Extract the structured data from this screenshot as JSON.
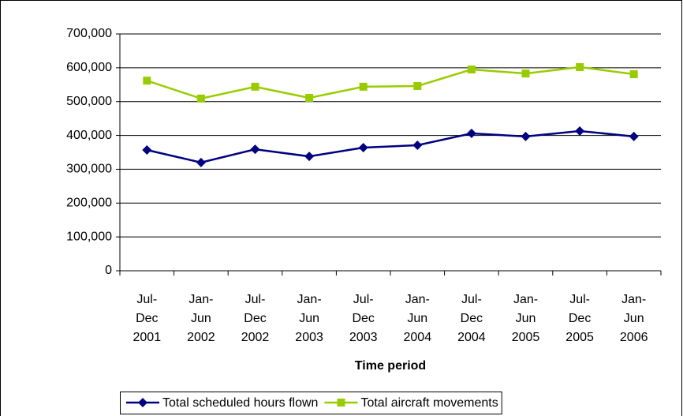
{
  "chart_data": {
    "type": "line",
    "x_label": "Time period",
    "categories": [
      "Jul-Dec 2001",
      "Jan-Jun 2002",
      "Jul-Dec 2002",
      "Jan-Jun 2003",
      "Jul-Dec 2003",
      "Jan-Jun 2004",
      "Jul-Dec 2004",
      "Jan-Jun 2005",
      "Jul-Dec 2005",
      "Jan-Jun 2006"
    ],
    "series": [
      {
        "name": "Total scheduled hours flown",
        "color": "#000080",
        "marker": "diamond",
        "values": [
          357000,
          320000,
          359000,
          338000,
          364000,
          371000,
          406000,
          397000,
          413000,
          397000
        ]
      },
      {
        "name": "Total aircraft movements",
        "color": "#99cc00",
        "marker": "square",
        "values": [
          562000,
          509000,
          544000,
          511000,
          544000,
          546000,
          595000,
          583000,
          602000,
          581000
        ]
      }
    ],
    "ylim": [
      0,
      700000
    ],
    "yticks": [
      0,
      {
        "value": 100000,
        "label": "100,000"
      },
      {
        "value": 200000,
        "label": "200,000"
      },
      {
        "value": 300000,
        "label": "300,000"
      },
      {
        "value": 400000,
        "label": "400,000"
      },
      {
        "value": 500000,
        "label": "500,000"
      },
      {
        "value": 600000,
        "label": "600,000"
      },
      {
        "value": 700000,
        "label": "700,000"
      }
    ],
    "grid": true,
    "legend": "bottom"
  }
}
